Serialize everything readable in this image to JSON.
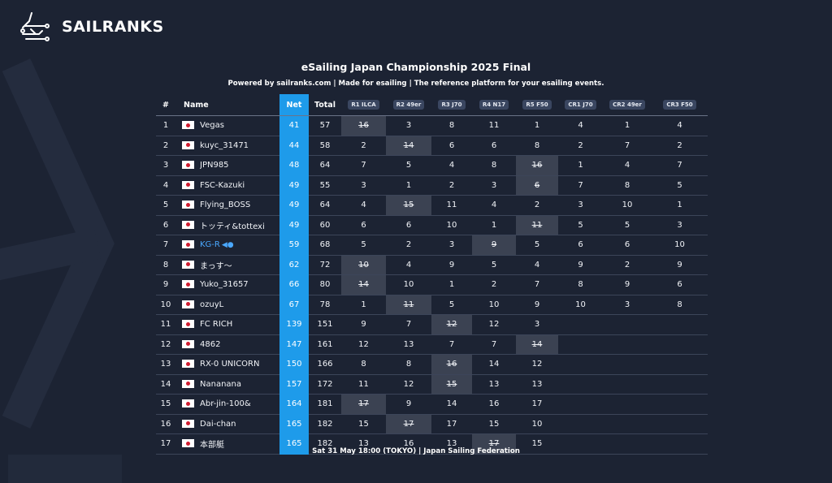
{
  "brand": {
    "name": "SAILRANKS",
    "logo_icon": "sailranks-logo-icon"
  },
  "title": "eSailing Japan Championship 2025 Final",
  "subtitle": "Powered by sailranks.com | Made for esailing | The reference platform for your esailing events.",
  "footer": "Sat 31 May 18:00 (TOKYO) | Japan Sailing Federation",
  "colors": {
    "background": "#1c2333",
    "net_column": "#1e9bea",
    "highlight_name": "#4aa8ff",
    "drop_cell": "#3b4252"
  },
  "headers": {
    "rank": "#",
    "name": "Name",
    "net": "Net",
    "total": "Total",
    "races": [
      "R1 ILCA",
      "R2 49er",
      "R3 J70",
      "R4 N17",
      "R5 F50",
      "CR1 J70",
      "CR2 49er",
      "CR3 F50"
    ]
  },
  "rows": [
    {
      "rank": "1",
      "name": "Vegas",
      "net": "41",
      "total": "57",
      "scores": [
        "16",
        "3",
        "8",
        "11",
        "1",
        "4",
        "1",
        "4"
      ],
      "dropped": [
        0
      ]
    },
    {
      "rank": "2",
      "name": "kuyc_31471",
      "net": "44",
      "total": "58",
      "scores": [
        "2",
        "14",
        "6",
        "6",
        "8",
        "2",
        "7",
        "2"
      ],
      "dropped": [
        1
      ]
    },
    {
      "rank": "3",
      "name": "JPN985",
      "net": "48",
      "total": "64",
      "scores": [
        "7",
        "5",
        "4",
        "8",
        "16",
        "1",
        "4",
        "7"
      ],
      "dropped": [
        4
      ]
    },
    {
      "rank": "4",
      "name": "FSC-Kazuki",
      "net": "49",
      "total": "55",
      "scores": [
        "3",
        "1",
        "2",
        "3",
        "6",
        "7",
        "8",
        "5"
      ],
      "dropped": [
        4
      ]
    },
    {
      "rank": "5",
      "name": "Flying_BOSS",
      "net": "49",
      "total": "64",
      "scores": [
        "4",
        "15",
        "11",
        "4",
        "2",
        "3",
        "10",
        "1"
      ],
      "dropped": [
        1
      ]
    },
    {
      "rank": "6",
      "name": "トッティ&tottexi",
      "net": "49",
      "total": "60",
      "scores": [
        "6",
        "6",
        "10",
        "1",
        "11",
        "5",
        "5",
        "3"
      ],
      "dropped": [
        4
      ]
    },
    {
      "rank": "7",
      "name": "KG-R",
      "net": "59",
      "total": "68",
      "scores": [
        "5",
        "2",
        "3",
        "9",
        "5",
        "6",
        "6",
        "10"
      ],
      "dropped": [
        3
      ],
      "highlight": true
    },
    {
      "rank": "8",
      "name": "まっす〜",
      "net": "62",
      "total": "72",
      "scores": [
        "10",
        "4",
        "9",
        "5",
        "4",
        "9",
        "2",
        "9"
      ],
      "dropped": [
        0
      ]
    },
    {
      "rank": "9",
      "name": "Yuko_31657",
      "net": "66",
      "total": "80",
      "scores": [
        "14",
        "10",
        "1",
        "2",
        "7",
        "8",
        "9",
        "6"
      ],
      "dropped": [
        0
      ]
    },
    {
      "rank": "10",
      "name": "ozuyL",
      "net": "67",
      "total": "78",
      "scores": [
        "1",
        "11",
        "5",
        "10",
        "9",
        "10",
        "3",
        "8"
      ],
      "dropped": [
        1
      ]
    },
    {
      "rank": "11",
      "name": "FC RICH",
      "net": "139",
      "total": "151",
      "scores": [
        "9",
        "7",
        "12",
        "12",
        "3",
        "",
        "",
        ""
      ],
      "dropped": [
        2
      ]
    },
    {
      "rank": "12",
      "name": "4862",
      "net": "147",
      "total": "161",
      "scores": [
        "12",
        "13",
        "7",
        "7",
        "14",
        "",
        "",
        ""
      ],
      "dropped": [
        4
      ]
    },
    {
      "rank": "13",
      "name": "RX-0 UNICORN",
      "net": "150",
      "total": "166",
      "scores": [
        "8",
        "8",
        "16",
        "14",
        "12",
        "",
        "",
        ""
      ],
      "dropped": [
        2
      ]
    },
    {
      "rank": "14",
      "name": "Nananana",
      "net": "157",
      "total": "172",
      "scores": [
        "11",
        "12",
        "15",
        "13",
        "13",
        "",
        "",
        ""
      ],
      "dropped": [
        2
      ]
    },
    {
      "rank": "15",
      "name": "Abr-jin-100&",
      "net": "164",
      "total": "181",
      "scores": [
        "17",
        "9",
        "14",
        "16",
        "17",
        "",
        "",
        ""
      ],
      "dropped": [
        0
      ]
    },
    {
      "rank": "16",
      "name": "Dai-chan",
      "net": "165",
      "total": "182",
      "scores": [
        "15",
        "17",
        "17",
        "15",
        "10",
        "",
        "",
        ""
      ],
      "dropped": [
        1
      ]
    },
    {
      "rank": "17",
      "name": "本部艇",
      "net": "165",
      "total": "182",
      "scores": [
        "13",
        "16",
        "13",
        "17",
        "15",
        "",
        "",
        ""
      ],
      "dropped": [
        3
      ]
    }
  ]
}
